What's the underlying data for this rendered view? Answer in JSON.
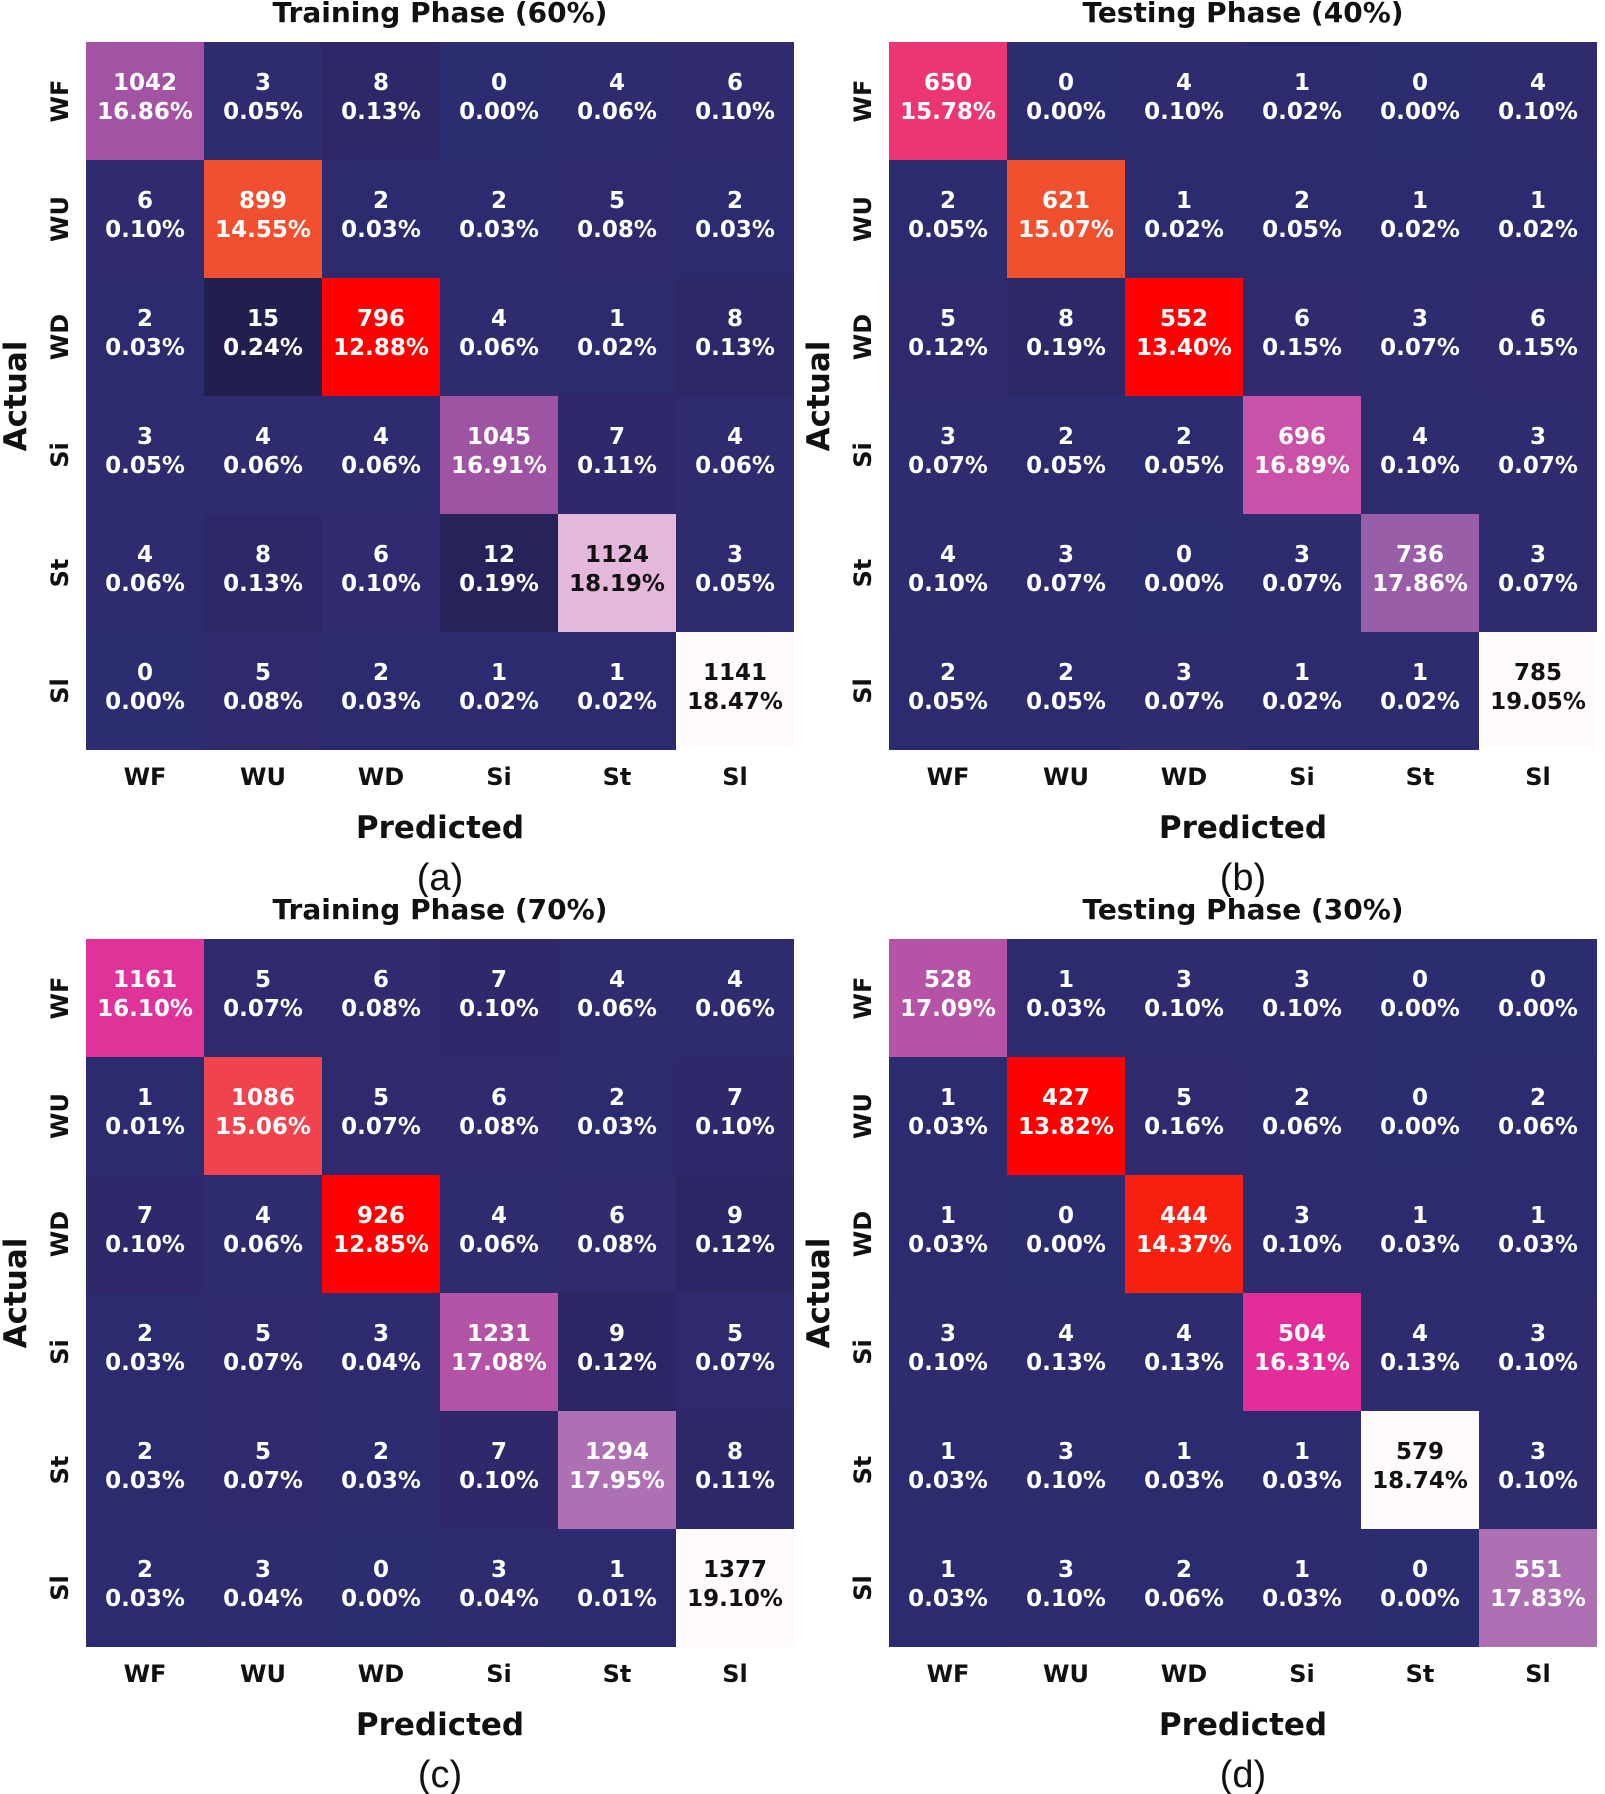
{
  "chart_data": [
    {
      "type": "heatmap",
      "title": "Training Phase (60%)",
      "panel_label": "(a)",
      "xlabel": "Predicted",
      "ylabel": "Actual",
      "x_categories": [
        "WF",
        "WU",
        "WD",
        "Si",
        "St",
        "Sl"
      ],
      "y_categories": [
        "WF",
        "WU",
        "WD",
        "Si",
        "St",
        "Sl"
      ],
      "counts": [
        [
          1042,
          3,
          8,
          0,
          4,
          6
        ],
        [
          6,
          899,
          2,
          2,
          5,
          2
        ],
        [
          2,
          15,
          796,
          4,
          1,
          8
        ],
        [
          3,
          4,
          4,
          1045,
          7,
          4
        ],
        [
          4,
          8,
          6,
          12,
          1124,
          3
        ],
        [
          0,
          5,
          2,
          1,
          1,
          1141
        ]
      ],
      "percents": [
        [
          "16.86%",
          "0.05%",
          "0.13%",
          "0.00%",
          "0.06%",
          "0.10%"
        ],
        [
          "0.10%",
          "14.55%",
          "0.03%",
          "0.03%",
          "0.08%",
          "0.03%"
        ],
        [
          "0.03%",
          "0.24%",
          "12.88%",
          "0.06%",
          "0.02%",
          "0.13%"
        ],
        [
          "0.05%",
          "0.06%",
          "0.06%",
          "16.91%",
          "0.11%",
          "0.06%"
        ],
        [
          "0.06%",
          "0.13%",
          "0.10%",
          "0.19%",
          "18.19%",
          "0.05%"
        ],
        [
          "0.00%",
          "0.08%",
          "0.03%",
          "0.02%",
          "0.02%",
          "18.47%"
        ]
      ]
    },
    {
      "type": "heatmap",
      "title": "Testing Phase (40%)",
      "panel_label": "(b)",
      "xlabel": "Predicted",
      "ylabel": "Actual",
      "x_categories": [
        "WF",
        "WU",
        "WD",
        "Si",
        "St",
        "Sl"
      ],
      "y_categories": [
        "WF",
        "WU",
        "WD",
        "Si",
        "St",
        "Sl"
      ],
      "counts": [
        [
          650,
          0,
          4,
          1,
          0,
          4
        ],
        [
          2,
          621,
          1,
          2,
          1,
          1
        ],
        [
          5,
          8,
          552,
          6,
          3,
          6
        ],
        [
          3,
          2,
          2,
          696,
          4,
          3
        ],
        [
          4,
          3,
          0,
          3,
          736,
          3
        ],
        [
          2,
          2,
          3,
          1,
          1,
          785
        ]
      ],
      "percents": [
        [
          "15.78%",
          "0.00%",
          "0.10%",
          "0.02%",
          "0.00%",
          "0.10%"
        ],
        [
          "0.05%",
          "15.07%",
          "0.02%",
          "0.05%",
          "0.02%",
          "0.02%"
        ],
        [
          "0.12%",
          "0.19%",
          "13.40%",
          "0.15%",
          "0.07%",
          "0.15%"
        ],
        [
          "0.07%",
          "0.05%",
          "0.05%",
          "16.89%",
          "0.10%",
          "0.07%"
        ],
        [
          "0.10%",
          "0.07%",
          "0.00%",
          "0.07%",
          "17.86%",
          "0.07%"
        ],
        [
          "0.05%",
          "0.05%",
          "0.07%",
          "0.02%",
          "0.02%",
          "19.05%"
        ]
      ]
    },
    {
      "type": "heatmap",
      "title": "Training Phase (70%)",
      "panel_label": "(c)",
      "xlabel": "Predicted",
      "ylabel": "Actual",
      "x_categories": [
        "WF",
        "WU",
        "WD",
        "Si",
        "St",
        "Sl"
      ],
      "y_categories": [
        "WF",
        "WU",
        "WD",
        "Si",
        "St",
        "Sl"
      ],
      "counts": [
        [
          1161,
          5,
          6,
          7,
          4,
          4
        ],
        [
          1,
          1086,
          5,
          6,
          2,
          7
        ],
        [
          7,
          4,
          926,
          4,
          6,
          9
        ],
        [
          2,
          5,
          3,
          1231,
          9,
          5
        ],
        [
          2,
          5,
          2,
          7,
          1294,
          8
        ],
        [
          2,
          3,
          0,
          3,
          1,
          1377
        ]
      ],
      "percents": [
        [
          "16.10%",
          "0.07%",
          "0.08%",
          "0.10%",
          "0.06%",
          "0.06%"
        ],
        [
          "0.01%",
          "15.06%",
          "0.07%",
          "0.08%",
          "0.03%",
          "0.10%"
        ],
        [
          "0.10%",
          "0.06%",
          "12.85%",
          "0.06%",
          "0.08%",
          "0.12%"
        ],
        [
          "0.03%",
          "0.07%",
          "0.04%",
          "17.08%",
          "0.12%",
          "0.07%"
        ],
        [
          "0.03%",
          "0.07%",
          "0.03%",
          "0.10%",
          "17.95%",
          "0.11%"
        ],
        [
          "0.03%",
          "0.04%",
          "0.00%",
          "0.04%",
          "0.01%",
          "19.10%"
        ]
      ]
    },
    {
      "type": "heatmap",
      "title": "Testing Phase (30%)",
      "panel_label": "(d)",
      "xlabel": "Predicted",
      "ylabel": "Actual",
      "x_categories": [
        "WF",
        "WU",
        "WD",
        "Si",
        "St",
        "Sl"
      ],
      "y_categories": [
        "WF",
        "WU",
        "WD",
        "Si",
        "St",
        "Sl"
      ],
      "counts": [
        [
          528,
          1,
          3,
          3,
          0,
          0
        ],
        [
          1,
          427,
          5,
          2,
          0,
          2
        ],
        [
          1,
          0,
          444,
          3,
          1,
          1
        ],
        [
          3,
          4,
          4,
          504,
          4,
          3
        ],
        [
          1,
          3,
          1,
          1,
          579,
          3
        ],
        [
          1,
          3,
          2,
          1,
          0,
          551
        ]
      ],
      "percents": [
        [
          "17.09%",
          "0.03%",
          "0.10%",
          "0.10%",
          "0.00%",
          "0.00%"
        ],
        [
          "0.03%",
          "13.82%",
          "0.16%",
          "0.06%",
          "0.00%",
          "0.06%"
        ],
        [
          "0.03%",
          "0.00%",
          "14.37%",
          "0.10%",
          "0.03%",
          "0.03%"
        ],
        [
          "0.10%",
          "0.13%",
          "0.13%",
          "16.31%",
          "0.13%",
          "0.10%"
        ],
        [
          "0.03%",
          "0.10%",
          "0.03%",
          "0.03%",
          "18.74%",
          "0.10%"
        ],
        [
          "0.03%",
          "0.10%",
          "0.06%",
          "0.03%",
          "0.00%",
          "17.83%"
        ]
      ]
    }
  ]
}
